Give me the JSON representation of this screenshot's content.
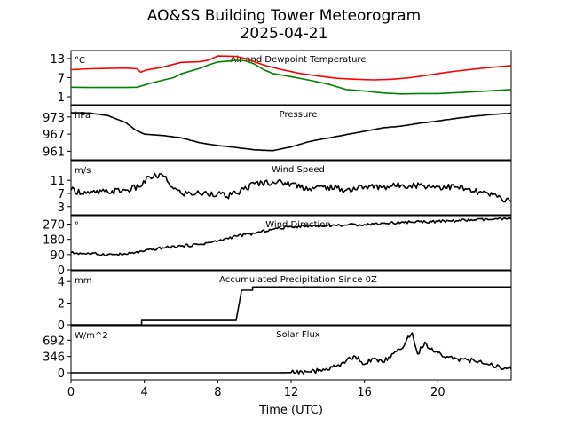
{
  "figure": {
    "title": "AO&SS Building Tower Meteorogram",
    "subtitle": "2025-04-21",
    "xlabel": "Time (UTC)",
    "x_ticks": [
      0,
      4,
      8,
      12,
      16,
      20
    ],
    "x_range": [
      0,
      24
    ]
  },
  "chart_data": [
    {
      "type": "line",
      "title": "Air and Dewpoint Temperature",
      "unit": "°C",
      "ylim": [
        -1.5,
        15.5
      ],
      "yticks": [
        1,
        7,
        13
      ],
      "series": [
        {
          "color": "#ff0000",
          "points": [
            [
              0,
              9.5
            ],
            [
              1,
              9.8
            ],
            [
              2,
              9.9
            ],
            [
              3,
              10
            ],
            [
              3.6,
              9.8
            ],
            [
              3.8,
              8.7
            ],
            [
              4.1,
              9.4
            ],
            [
              5,
              10.3
            ],
            [
              6,
              11.8
            ],
            [
              7,
              12
            ],
            [
              7.5,
              12.5
            ],
            [
              8,
              13.8
            ],
            [
              9,
              13.7
            ],
            [
              9.5,
              13
            ],
            [
              10,
              12
            ],
            [
              10.6,
              10.8
            ],
            [
              11.5,
              9.5
            ],
            [
              12.5,
              8.3
            ],
            [
              13.5,
              7.5
            ],
            [
              14.5,
              6.8
            ],
            [
              15.5,
              6.5
            ],
            [
              16.5,
              6.3
            ],
            [
              17.5,
              6.5
            ],
            [
              18.5,
              7
            ],
            [
              19.5,
              7.8
            ],
            [
              20.5,
              8.7
            ],
            [
              21.5,
              9.4
            ],
            [
              22.5,
              10
            ],
            [
              24,
              10.8
            ]
          ]
        },
        {
          "color": "#008000",
          "points": [
            [
              0,
              4
            ],
            [
              1,
              3.9
            ],
            [
              2,
              3.9
            ],
            [
              3,
              3.9
            ],
            [
              3.6,
              4
            ],
            [
              4.3,
              5.2
            ],
            [
              5,
              6.2
            ],
            [
              5.6,
              7
            ],
            [
              6,
              8.2
            ],
            [
              7,
              9.9
            ],
            [
              7.5,
              11
            ],
            [
              8,
              11.9
            ],
            [
              9,
              12.4
            ],
            [
              9.5,
              12.3
            ],
            [
              10,
              11.3
            ],
            [
              10.5,
              9.5
            ],
            [
              11,
              8.3
            ],
            [
              12,
              7.3
            ],
            [
              13,
              6.2
            ],
            [
              14,
              5
            ],
            [
              15,
              3.3
            ],
            [
              16,
              2.8
            ],
            [
              17,
              2.2
            ],
            [
              18,
              1.9
            ],
            [
              19,
              2
            ],
            [
              20,
              2
            ],
            [
              21,
              2.3
            ],
            [
              22,
              2.6
            ],
            [
              23,
              2.9
            ],
            [
              24,
              3.3
            ]
          ]
        }
      ]
    },
    {
      "type": "line",
      "title": "Pressure",
      "unit": "hPa",
      "ylim": [
        958,
        977
      ],
      "yticks": [
        961,
        967,
        973
      ],
      "series": [
        {
          "color": "#000000",
          "points": [
            [
              0,
              974.5
            ],
            [
              1,
              974.4
            ],
            [
              2,
              973.5
            ],
            [
              3,
              971
            ],
            [
              3.5,
              968.5
            ],
            [
              4,
              967
            ],
            [
              5,
              966.5
            ],
            [
              6,
              965.7
            ],
            [
              7,
              964
            ],
            [
              8,
              963
            ],
            [
              9,
              962.3
            ],
            [
              10,
              961.5
            ],
            [
              11,
              961.2
            ],
            [
              12,
              962.5
            ],
            [
              13,
              964.4
            ],
            [
              14,
              965.6
            ],
            [
              15,
              966.8
            ],
            [
              16,
              968
            ],
            [
              17,
              969.2
            ],
            [
              18,
              969.8
            ],
            [
              19,
              970.8
            ],
            [
              20,
              971.6
            ],
            [
              21,
              972.5
            ],
            [
              22,
              973.3
            ],
            [
              23,
              973.9
            ],
            [
              24,
              974.3
            ]
          ]
        }
      ]
    },
    {
      "type": "line",
      "title": "Wind Speed",
      "unit": "m/s",
      "ylim": [
        0.5,
        17
      ],
      "yticks": [
        3,
        7,
        11
      ],
      "series": [
        {
          "color": "#000000",
          "points": [
            [
              0,
              8
            ],
            [
              1,
              7
            ],
            [
              2,
              7.5
            ],
            [
              3,
              8
            ],
            [
              3.7,
              9
            ],
            [
              4.3,
              12
            ],
            [
              5,
              12.5
            ],
            [
              5.5,
              9
            ],
            [
              6,
              7
            ],
            [
              7,
              7
            ],
            [
              8,
              7
            ],
            [
              8.5,
              6
            ],
            [
              9,
              7
            ],
            [
              10,
              10
            ],
            [
              11,
              10.5
            ],
            [
              12,
              10
            ],
            [
              13,
              8.5
            ],
            [
              14,
              9
            ],
            [
              15,
              8
            ],
            [
              16,
              9
            ],
            [
              17,
              9
            ],
            [
              18,
              9.5
            ],
            [
              19,
              9.5
            ],
            [
              20,
              9
            ],
            [
              21,
              9
            ],
            [
              22,
              7.5
            ],
            [
              23,
              6.5
            ],
            [
              24,
              4.5
            ]
          ]
        }
      ]
    },
    {
      "type": "line",
      "title": "Wind Direction",
      "unit": "°",
      "ylim": [
        0,
        320
      ],
      "yticks": [
        0,
        90,
        180,
        270
      ],
      "series": [
        {
          "color": "#000000",
          "points": [
            [
              0,
              100
            ],
            [
              1,
              95
            ],
            [
              2,
              90
            ],
            [
              3,
              92
            ],
            [
              4,
              110
            ],
            [
              5,
              130
            ],
            [
              6,
              140
            ],
            [
              7,
              150
            ],
            [
              8,
              170
            ],
            [
              9,
              200
            ],
            [
              10,
              215
            ],
            [
              11,
              240
            ],
            [
              12,
              255
            ],
            [
              13,
              260
            ],
            [
              14,
              262
            ],
            [
              15,
              265
            ],
            [
              16,
              268
            ],
            [
              17,
              275
            ],
            [
              18,
              280
            ],
            [
              19,
              285
            ],
            [
              20,
              285
            ],
            [
              21,
              290
            ],
            [
              22,
              295
            ],
            [
              23,
              298
            ],
            [
              24,
              300
            ]
          ]
        }
      ]
    },
    {
      "type": "line",
      "title": "Accumulated Precipitation Since 0Z",
      "unit": "mm",
      "ylim": [
        0,
        5
      ],
      "yticks": [
        0,
        2,
        4
      ],
      "series": [
        {
          "color": "#000000",
          "points": [
            [
              0,
              0
            ],
            [
              3.85,
              0
            ],
            [
              3.85,
              0.4
            ],
            [
              9,
              0.4
            ],
            [
              9.3,
              3.2
            ],
            [
              9.9,
              3.2
            ],
            [
              9.9,
              3.5
            ],
            [
              24,
              3.5
            ]
          ]
        }
      ]
    },
    {
      "type": "line",
      "title": "Solar Flux",
      "unit": "W/m^2",
      "ylim": [
        -150,
        1000
      ],
      "yticks": [
        0,
        346,
        692
      ],
      "series": [
        {
          "color": "#000000",
          "points": [
            [
              0,
              0
            ],
            [
              11,
              0
            ],
            [
              12,
              5
            ],
            [
              13,
              20
            ],
            [
              14,
              60
            ],
            [
              14.5,
              150
            ],
            [
              15,
              250
            ],
            [
              15.5,
              350
            ],
            [
              16,
              180
            ],
            [
              16.5,
              300
            ],
            [
              17,
              220
            ],
            [
              17.5,
              400
            ],
            [
              18,
              500
            ],
            [
              18.3,
              700
            ],
            [
              18.6,
              850
            ],
            [
              18.9,
              400
            ],
            [
              19.3,
              650
            ],
            [
              19.6,
              500
            ],
            [
              20,
              420
            ],
            [
              21,
              300
            ],
            [
              22,
              250
            ],
            [
              23,
              150
            ],
            [
              24,
              80
            ]
          ]
        }
      ]
    }
  ]
}
